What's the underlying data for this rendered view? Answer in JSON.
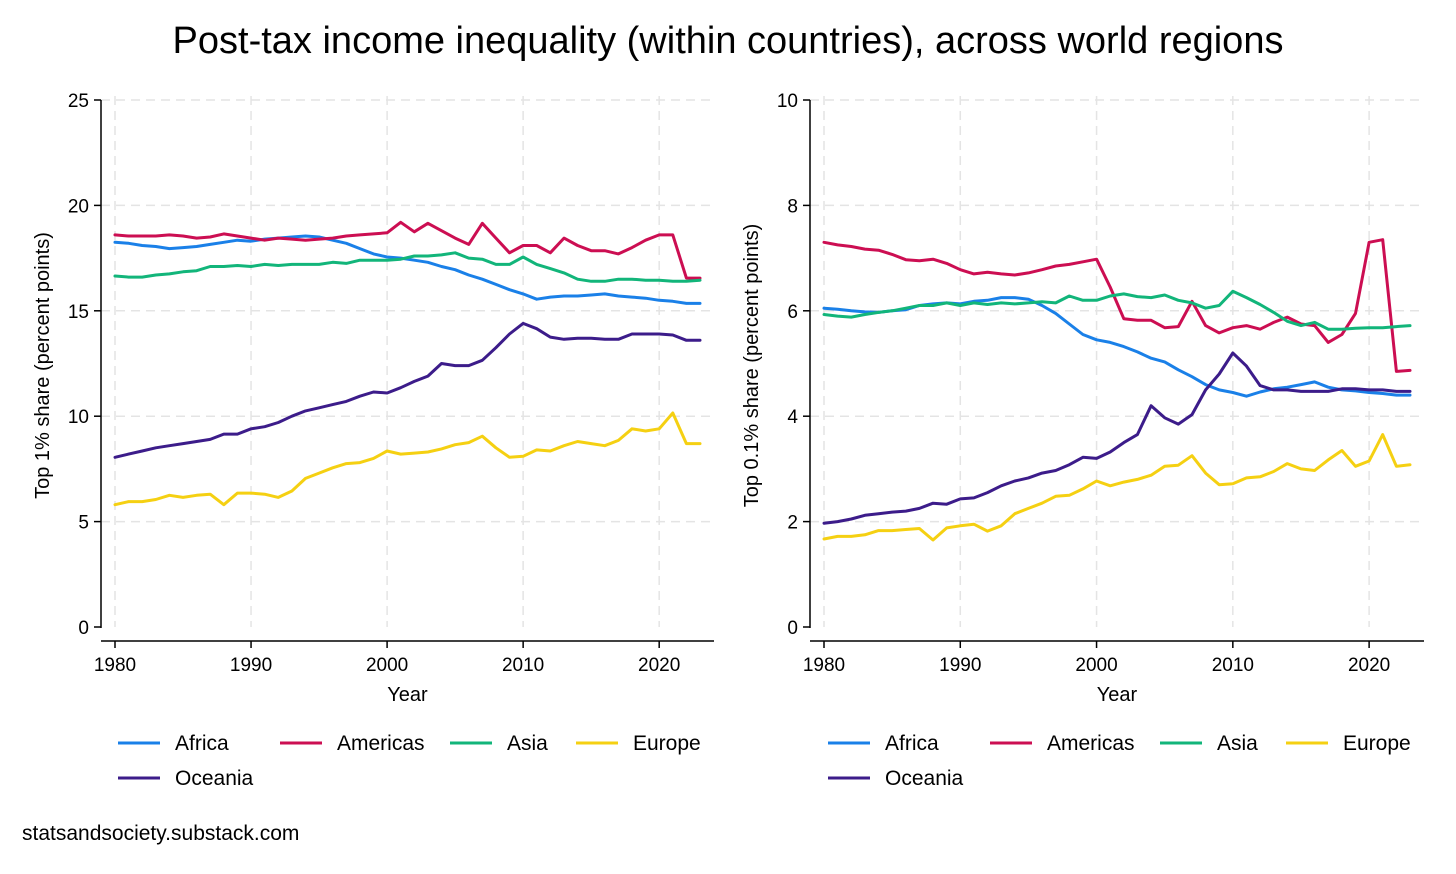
{
  "figure": {
    "title": "Post-tax income inequality (within countries), across world regions",
    "source": "statsandsociety.substack.com"
  },
  "colors": {
    "Africa": "#1a80e8",
    "Americas": "#cc0e52",
    "Asia": "#12b57a",
    "Europe": "#f5d012",
    "Oceania": "#3c1c8a",
    "grid": "#e4e4e4",
    "axis": "#000000"
  },
  "chart_data": [
    {
      "type": "line",
      "title": "",
      "xlabel": "Year",
      "ylabel": "Top 1% share (percent points)",
      "xlim": [
        1980,
        2023
      ],
      "ylim": [
        0,
        25
      ],
      "xticks": [
        1980,
        1990,
        2000,
        2010,
        2020
      ],
      "yticks": [
        0,
        5,
        10,
        15,
        20,
        25
      ],
      "grid": true,
      "legend_position": "bottom",
      "x": [
        1980,
        1981,
        1982,
        1983,
        1984,
        1985,
        1986,
        1987,
        1988,
        1989,
        1990,
        1991,
        1992,
        1993,
        1994,
        1995,
        1996,
        1997,
        1998,
        1999,
        2000,
        2001,
        2002,
        2003,
        2004,
        2005,
        2006,
        2007,
        2008,
        2009,
        2010,
        2011,
        2012,
        2013,
        2014,
        2015,
        2016,
        2017,
        2018,
        2019,
        2020,
        2021,
        2022,
        2023
      ],
      "series": [
        {
          "name": "Africa",
          "values": [
            18.25,
            18.2,
            18.1,
            18.05,
            17.95,
            18.0,
            18.05,
            18.15,
            18.25,
            18.35,
            18.3,
            18.4,
            18.45,
            18.5,
            18.55,
            18.5,
            18.35,
            18.2,
            17.95,
            17.7,
            17.55,
            17.5,
            17.4,
            17.3,
            17.1,
            16.95,
            16.7,
            16.5,
            16.25,
            16.0,
            15.8,
            15.55,
            15.65,
            15.7,
            15.7,
            15.75,
            15.8,
            15.7,
            15.65,
            15.6,
            15.5,
            15.45,
            15.35,
            15.35
          ]
        },
        {
          "name": "Americas",
          "values": [
            18.6,
            18.55,
            18.55,
            18.55,
            18.6,
            18.55,
            18.45,
            18.5,
            18.65,
            18.55,
            18.45,
            18.35,
            18.45,
            18.4,
            18.35,
            18.4,
            18.45,
            18.55,
            18.6,
            18.65,
            18.7,
            19.2,
            18.75,
            19.15,
            18.8,
            18.45,
            18.15,
            19.15,
            18.45,
            17.75,
            18.1,
            18.1,
            17.75,
            18.45,
            18.1,
            17.85,
            17.85,
            17.7,
            18.0,
            18.35,
            18.6,
            18.6,
            16.55,
            16.55
          ]
        },
        {
          "name": "Asia",
          "values": [
            16.65,
            16.6,
            16.6,
            16.7,
            16.75,
            16.85,
            16.9,
            17.1,
            17.1,
            17.15,
            17.1,
            17.2,
            17.15,
            17.2,
            17.2,
            17.2,
            17.3,
            17.25,
            17.4,
            17.4,
            17.4,
            17.45,
            17.6,
            17.6,
            17.65,
            17.75,
            17.5,
            17.45,
            17.2,
            17.2,
            17.55,
            17.2,
            17.0,
            16.8,
            16.5,
            16.4,
            16.4,
            16.5,
            16.5,
            16.45,
            16.45,
            16.4,
            16.4,
            16.45
          ]
        },
        {
          "name": "Europe",
          "values": [
            5.8,
            5.95,
            5.95,
            6.05,
            6.25,
            6.15,
            6.25,
            6.3,
            5.8,
            6.35,
            6.35,
            6.3,
            6.15,
            6.45,
            7.05,
            7.3,
            7.55,
            7.75,
            7.8,
            8.0,
            8.35,
            8.2,
            8.25,
            8.3,
            8.45,
            8.65,
            8.75,
            9.05,
            8.5,
            8.05,
            8.1,
            8.4,
            8.35,
            8.6,
            8.8,
            8.7,
            8.6,
            8.85,
            9.4,
            9.3,
            9.4,
            10.15,
            8.7,
            8.7
          ]
        },
        {
          "name": "Oceania",
          "values": [
            8.05,
            8.2,
            8.35,
            8.5,
            8.6,
            8.7,
            8.8,
            8.9,
            9.15,
            9.15,
            9.4,
            9.5,
            9.7,
            10.0,
            10.25,
            10.4,
            10.55,
            10.7,
            10.95,
            11.15,
            11.1,
            11.35,
            11.65,
            11.9,
            12.5,
            12.4,
            12.4,
            12.65,
            13.25,
            13.9,
            14.4,
            14.15,
            13.75,
            13.65,
            13.7,
            13.7,
            13.65,
            13.65,
            13.9,
            13.9,
            13.9,
            13.85,
            13.6,
            13.6
          ]
        }
      ]
    },
    {
      "type": "line",
      "title": "",
      "xlabel": "Year",
      "ylabel": "Top 0.1% share (percent points)",
      "xlim": [
        1980,
        2023
      ],
      "ylim": [
        0,
        10
      ],
      "xticks": [
        1980,
        1990,
        2000,
        2010,
        2020
      ],
      "yticks": [
        0,
        2,
        4,
        6,
        8,
        10
      ],
      "grid": true,
      "legend_position": "bottom",
      "x": [
        1980,
        1981,
        1982,
        1983,
        1984,
        1985,
        1986,
        1987,
        1988,
        1989,
        1990,
        1991,
        1992,
        1993,
        1994,
        1995,
        1996,
        1997,
        1998,
        1999,
        2000,
        2001,
        2002,
        2003,
        2004,
        2005,
        2006,
        2007,
        2008,
        2009,
        2010,
        2011,
        2012,
        2013,
        2014,
        2015,
        2016,
        2017,
        2018,
        2019,
        2020,
        2021,
        2022,
        2023
      ],
      "series": [
        {
          "name": "Africa",
          "values": [
            6.05,
            6.03,
            6.0,
            5.98,
            5.97,
            6.0,
            6.02,
            6.1,
            6.13,
            6.15,
            6.13,
            6.18,
            6.2,
            6.25,
            6.25,
            6.22,
            6.1,
            5.95,
            5.75,
            5.55,
            5.45,
            5.4,
            5.32,
            5.22,
            5.1,
            5.03,
            4.88,
            4.75,
            4.6,
            4.5,
            4.45,
            4.38,
            4.46,
            4.52,
            4.55,
            4.6,
            4.65,
            4.55,
            4.5,
            4.48,
            4.45,
            4.43,
            4.4,
            4.4
          ]
        },
        {
          "name": "Americas",
          "values": [
            7.3,
            7.25,
            7.22,
            7.17,
            7.15,
            7.07,
            6.97,
            6.95,
            6.98,
            6.9,
            6.78,
            6.7,
            6.73,
            6.7,
            6.68,
            6.72,
            6.78,
            6.85,
            6.88,
            6.93,
            6.98,
            6.45,
            5.85,
            5.82,
            5.82,
            5.68,
            5.7,
            6.18,
            5.72,
            5.58,
            5.68,
            5.72,
            5.65,
            5.78,
            5.88,
            5.75,
            5.72,
            5.4,
            5.55,
            5.95,
            7.3,
            7.35,
            4.85,
            4.87
          ]
        },
        {
          "name": "Asia",
          "values": [
            5.93,
            5.9,
            5.88,
            5.93,
            5.97,
            6.0,
            6.05,
            6.1,
            6.1,
            6.15,
            6.1,
            6.15,
            6.12,
            6.15,
            6.13,
            6.15,
            6.17,
            6.15,
            6.28,
            6.2,
            6.2,
            6.28,
            6.32,
            6.27,
            6.25,
            6.3,
            6.2,
            6.15,
            6.05,
            6.1,
            6.37,
            6.25,
            6.12,
            5.97,
            5.8,
            5.72,
            5.78,
            5.65,
            5.65,
            5.67,
            5.68,
            5.68,
            5.7,
            5.72
          ]
        },
        {
          "name": "Europe",
          "values": [
            1.67,
            1.72,
            1.72,
            1.75,
            1.83,
            1.83,
            1.85,
            1.87,
            1.65,
            1.88,
            1.92,
            1.95,
            1.82,
            1.92,
            2.15,
            2.25,
            2.35,
            2.48,
            2.5,
            2.62,
            2.77,
            2.68,
            2.75,
            2.8,
            2.88,
            3.05,
            3.07,
            3.25,
            2.92,
            2.7,
            2.72,
            2.83,
            2.85,
            2.95,
            3.1,
            3.0,
            2.97,
            3.17,
            3.35,
            3.05,
            3.15,
            3.65,
            3.05,
            3.08
          ]
        },
        {
          "name": "Oceania",
          "values": [
            1.97,
            2.0,
            2.05,
            2.12,
            2.15,
            2.18,
            2.2,
            2.25,
            2.35,
            2.33,
            2.43,
            2.45,
            2.55,
            2.68,
            2.77,
            2.83,
            2.92,
            2.97,
            3.08,
            3.22,
            3.2,
            3.32,
            3.5,
            3.65,
            4.2,
            3.97,
            3.85,
            4.03,
            4.5,
            4.8,
            5.2,
            4.95,
            4.58,
            4.5,
            4.5,
            4.47,
            4.47,
            4.47,
            4.52,
            4.52,
            4.5,
            4.5,
            4.47,
            4.47
          ]
        }
      ]
    }
  ]
}
